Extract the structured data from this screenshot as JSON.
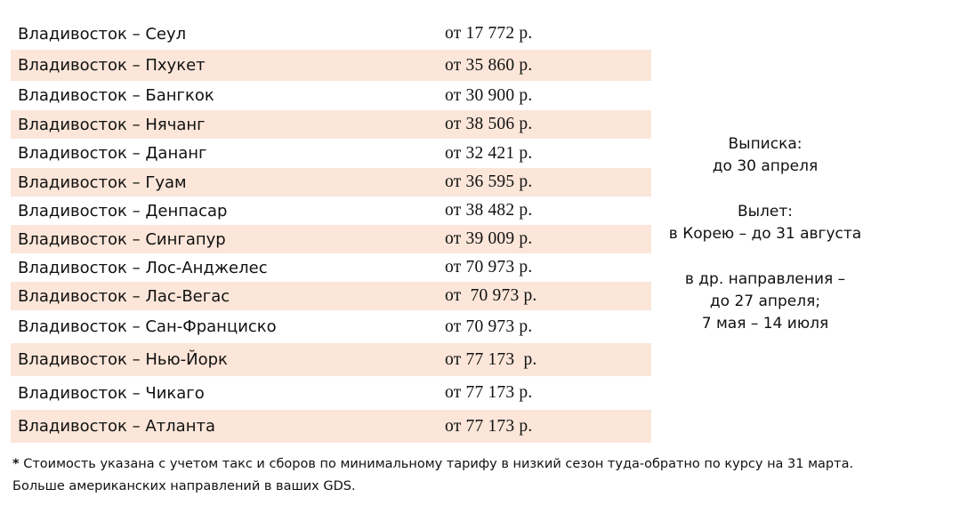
{
  "fares": [
    {
      "route": "Владивосток – Сеул",
      "price": "от 17 772 р."
    },
    {
      "route": "Владивосток – Пхукет",
      "price": "от 35 860 р."
    },
    {
      "route": "Владивосток – Бангкок",
      "price": "от 30 900 р."
    },
    {
      "route": "Владивосток – Нячанг",
      "price": "от 38 506 р."
    },
    {
      "route": "Владивосток – Дананг",
      "price": "от 32 421 р."
    },
    {
      "route": "Владивосток – Гуам",
      "price": "от 36 595 р."
    },
    {
      "route": "Владивосток – Денпасар",
      "price": "от 38 482 р."
    },
    {
      "route": "Владивосток – Сингапур",
      "price": "от 39 009 р."
    },
    {
      "route": "Владивосток – Лос-Анджелес",
      "price": "от 70 973 р."
    },
    {
      "route": "Владивосток – Лас-Вегас",
      "price": "от  70 973 р."
    },
    {
      "route": "Владивосток – Сан-Франциско",
      "price": "от 70 973 р."
    },
    {
      "route": "Владивосток – Нью-Йорк",
      "price": "от 77 173  р."
    },
    {
      "route": "Владивосток – Чикаго",
      "price": "от 77 173 р."
    },
    {
      "route": "Владивосток – Атланта",
      "price": "от 77 173 р."
    }
  ],
  "conditions": {
    "issue_label": "Выписка:",
    "issue_value": "до 30 апреля",
    "departure_label": "Вылет:",
    "departure_korea": "в Корею – до 31 августа",
    "departure_other_line1": "в др. направления –",
    "departure_other_line2": "до 27 апреля;",
    "departure_other_line3": "7 мая – 14 июля"
  },
  "footnote": {
    "star": "*",
    "line1": " Стоимость указана с учетом такс и сборов по минимальному тарифу в низкий сезон туда-обратно по курсу на 31 марта.",
    "line2": "Больше американских направлений в ваших GDS."
  },
  "colors": {
    "row_shade": "#fbe6d9",
    "text": "#111111"
  }
}
